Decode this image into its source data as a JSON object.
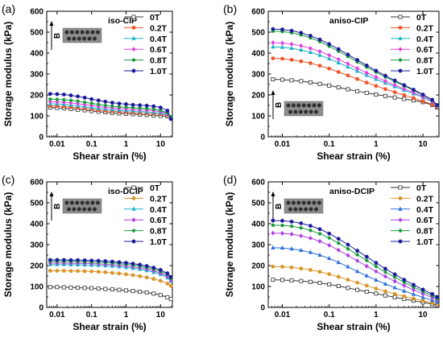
{
  "figure": {
    "panel_count": 4
  },
  "chart_data": [
    {
      "type": "line",
      "panel_label": "(a)",
      "title": "iso-CIP",
      "xlabel": "Shear strain (%)",
      "ylabel": "Storage modulus (kPa)",
      "xscale": "log",
      "xlim": [
        0.005,
        22
      ],
      "ylim": [
        0,
        600
      ],
      "x_tick_labels": [
        "0.01",
        "0.1",
        "1",
        "10"
      ],
      "y_tick_labels": [
        "0",
        "100",
        "200",
        "300",
        "400",
        "500",
        "600"
      ],
      "inset": {
        "field_label": "B",
        "position": "top-left"
      },
      "legend_position": "top-right",
      "x": [
        0.00631,
        0.01,
        0.0158,
        0.0251,
        0.0398,
        0.0631,
        0.1,
        0.158,
        0.251,
        0.398,
        0.631,
        1,
        1.58,
        2.51,
        3.98,
        6.31,
        10,
        15.8,
        20
      ],
      "series": [
        {
          "name": "0T",
          "color": "#333333",
          "marker": "square",
          "values": [
            140,
            138,
            136,
            133,
            130,
            127,
            123,
            120,
            117,
            114,
            112,
            110,
            108,
            106,
            104,
            102,
            100,
            98,
            90
          ]
        },
        {
          "name": "0.2T",
          "color": "#f0542a",
          "marker": "circle",
          "values": [
            148,
            147,
            145,
            142,
            139,
            136,
            132,
            128,
            125,
            122,
            120,
            118,
            116,
            114,
            112,
            110,
            108,
            103,
            92
          ]
        },
        {
          "name": "0.4T",
          "color": "#19b3c8",
          "marker": "triangle",
          "values": [
            158,
            157,
            155,
            152,
            148,
            144,
            140,
            136,
            133,
            130,
            127,
            125,
            123,
            121,
            119,
            117,
            114,
            108,
            93
          ]
        },
        {
          "name": "0.6T",
          "color": "#e040e0",
          "marker": "diamond",
          "values": [
            168,
            167,
            165,
            162,
            158,
            154,
            150,
            145,
            141,
            138,
            135,
            133,
            131,
            129,
            127,
            125,
            120,
            112,
            94
          ]
        },
        {
          "name": "0.8T",
          "color": "#1a9b3c",
          "marker": "pentagon",
          "values": [
            180,
            179,
            177,
            174,
            170,
            165,
            160,
            155,
            150,
            146,
            143,
            141,
            139,
            137,
            135,
            132,
            126,
            115,
            95
          ]
        },
        {
          "name": "1.0T",
          "color": "#1a1a9b",
          "marker": "circle",
          "values": [
            205,
            204,
            202,
            198,
            193,
            187,
            180,
            174,
            168,
            163,
            159,
            156,
            153,
            151,
            149,
            146,
            140,
            125,
            85
          ]
        }
      ]
    },
    {
      "type": "line",
      "panel_label": "(b)",
      "title": "aniso-CIP",
      "xlabel": "Shear strain (%)",
      "ylabel": "Storage modulus (kPa)",
      "xscale": "log",
      "xlim": [
        0.005,
        22
      ],
      "ylim": [
        0,
        600
      ],
      "x_tick_labels": [
        "0.01",
        "0.1",
        "1",
        "10"
      ],
      "y_tick_labels": [
        "0",
        "100",
        "200",
        "300",
        "400",
        "500",
        "600"
      ],
      "inset": {
        "field_label": "B",
        "position": "bottom-left"
      },
      "legend_position": "top-right",
      "x": [
        0.00631,
        0.01,
        0.0158,
        0.0251,
        0.0398,
        0.0631,
        0.1,
        0.158,
        0.251,
        0.398,
        0.631,
        1,
        1.58,
        2.51,
        3.98,
        6.31,
        10,
        15.8,
        20
      ],
      "series": [
        {
          "name": "0T",
          "color": "#333333",
          "marker": "square",
          "values": [
            275,
            273,
            270,
            266,
            260,
            253,
            245,
            236,
            227,
            218,
            210,
            202,
            195,
            188,
            181,
            174,
            166,
            152,
            140
          ]
        },
        {
          "name": "0.2T",
          "color": "#f0542a",
          "marker": "circle",
          "values": [
            375,
            373,
            368,
            361,
            352,
            340,
            326,
            310,
            293,
            276,
            259,
            243,
            228,
            213,
            199,
            185,
            170,
            155,
            142
          ]
        },
        {
          "name": "0.4T",
          "color": "#19b3c8",
          "marker": "triangle",
          "values": [
            430,
            428,
            423,
            415,
            404,
            390,
            373,
            354,
            334,
            314,
            294,
            275,
            257,
            240,
            223,
            206,
            188,
            168,
            145
          ]
        },
        {
          "name": "0.6T",
          "color": "#e040e0",
          "marker": "diamond",
          "values": [
            450,
            448,
            443,
            435,
            423,
            408,
            390,
            370,
            349,
            327,
            306,
            286,
            266,
            247,
            229,
            211,
            192,
            170,
            147
          ]
        },
        {
          "name": "0.8T",
          "color": "#1a9b3c",
          "marker": "pentagon",
          "values": [
            505,
            503,
            497,
            487,
            473,
            455,
            433,
            409,
            384,
            358,
            333,
            309,
            286,
            264,
            243,
            222,
            200,
            175,
            150
          ]
        },
        {
          "name": "1.0T",
          "color": "#1a1a9b",
          "marker": "circle",
          "values": [
            515,
            513,
            507,
            497,
            483,
            465,
            443,
            419,
            393,
            367,
            341,
            316,
            292,
            269,
            247,
            225,
            202,
            177,
            152
          ]
        }
      ]
    },
    {
      "type": "line",
      "panel_label": "(c)",
      "title": "iso-DCIP",
      "xlabel": "Shear strain (%)",
      "ylabel": "Storage modulus (kPa)",
      "xscale": "log",
      "xlim": [
        0.005,
        22
      ],
      "ylim": [
        0,
        600
      ],
      "x_tick_labels": [
        "0.01",
        "0.1",
        "1",
        "10"
      ],
      "y_tick_labels": [
        "0",
        "100",
        "200",
        "300",
        "400",
        "500",
        "600"
      ],
      "inset": {
        "field_label": "B",
        "position": "top-left"
      },
      "legend_position": "top-right",
      "x": [
        0.00631,
        0.01,
        0.0158,
        0.0251,
        0.0398,
        0.0631,
        0.1,
        0.158,
        0.251,
        0.398,
        0.631,
        1,
        1.58,
        2.51,
        3.98,
        6.31,
        10,
        15.8,
        20
      ],
      "series": [
        {
          "name": "0T",
          "color": "#333333",
          "marker": "square",
          "values": [
            97,
            97,
            96,
            95,
            94,
            93,
            92,
            90,
            88,
            86,
            84,
            81,
            78,
            75,
            71,
            66,
            59,
            48,
            40
          ]
        },
        {
          "name": "0.2T",
          "color": "#d9962a",
          "marker": "circle",
          "values": [
            175,
            175,
            175,
            174,
            174,
            173,
            172,
            170,
            168,
            165,
            162,
            158,
            154,
            149,
            143,
            136,
            127,
            114,
            103
          ]
        },
        {
          "name": "0.4T",
          "color": "#19b3c8",
          "marker": "triangle",
          "values": [
            205,
            205,
            205,
            204,
            204,
            203,
            202,
            201,
            199,
            197,
            194,
            191,
            187,
            182,
            176,
            168,
            158,
            142,
            125
          ]
        },
        {
          "name": "0.6T",
          "color": "#b040e0",
          "marker": "diamond",
          "values": [
            212,
            212,
            212,
            211,
            211,
            210,
            209,
            208,
            206,
            204,
            201,
            198,
            194,
            189,
            183,
            175,
            164,
            148,
            130
          ]
        },
        {
          "name": "0.8T",
          "color": "#1a9b3c",
          "marker": "pentagon",
          "values": [
            220,
            220,
            220,
            219,
            219,
            218,
            217,
            216,
            214,
            212,
            209,
            206,
            202,
            197,
            191,
            183,
            172,
            157,
            138
          ]
        },
        {
          "name": "1.0T",
          "color": "#1a1a9b",
          "marker": "circle",
          "values": [
            227,
            227,
            227,
            226,
            226,
            225,
            224,
            223,
            221,
            219,
            216,
            213,
            209,
            204,
            198,
            190,
            179,
            163,
            145
          ]
        }
      ]
    },
    {
      "type": "line",
      "panel_label": "(d)",
      "title": "aniso-DCIP",
      "xlabel": "Shear strain (%)",
      "ylabel": "Storage modulus (kPa)",
      "xscale": "log",
      "xlim": [
        0.005,
        22
      ],
      "ylim": [
        0,
        600
      ],
      "x_tick_labels": [
        "0.01",
        "0.1",
        "1",
        "10"
      ],
      "y_tick_labels": [
        "0",
        "100",
        "200",
        "300",
        "400",
        "500",
        "600"
      ],
      "inset": {
        "field_label": "B",
        "position": "top-left"
      },
      "legend_position": "top-right",
      "x": [
        0.00631,
        0.01,
        0.0158,
        0.0251,
        0.0398,
        0.0631,
        0.1,
        0.158,
        0.251,
        0.398,
        0.631,
        1,
        1.58,
        2.51,
        3.98,
        6.31,
        10,
        15.8,
        20
      ],
      "series": [
        {
          "name": "0T",
          "color": "#333333",
          "marker": "square",
          "values": [
            132,
            131,
            129,
            126,
            122,
            117,
            110,
            102,
            93,
            84,
            75,
            66,
            57,
            48,
            40,
            32,
            24,
            16,
            10
          ]
        },
        {
          "name": "0.2T",
          "color": "#d9962a",
          "marker": "circle",
          "values": [
            195,
            194,
            191,
            186,
            179,
            170,
            159,
            146,
            132,
            118,
            104,
            90,
            77,
            64,
            53,
            42,
            32,
            22,
            15
          ]
        },
        {
          "name": "0.4T",
          "color": "#2a6fd9",
          "marker": "triangle",
          "values": [
            285,
            284,
            280,
            273,
            263,
            250,
            234,
            215,
            194,
            172,
            151,
            131,
            112,
            94,
            78,
            63,
            48,
            34,
            25
          ]
        },
        {
          "name": "0.6T",
          "color": "#b040e0",
          "marker": "diamond",
          "values": [
            355,
            354,
            350,
            342,
            331,
            316,
            297,
            274,
            249,
            223,
            197,
            172,
            148,
            125,
            104,
            84,
            65,
            47,
            35
          ]
        },
        {
          "name": "0.8T",
          "color": "#1a9b3c",
          "marker": "pentagon",
          "values": [
            393,
            392,
            388,
            380,
            368,
            352,
            332,
            307,
            280,
            252,
            224,
            196,
            169,
            144,
            120,
            97,
            76,
            56,
            42
          ]
        },
        {
          "name": "1.0T",
          "color": "#1a1a9b",
          "marker": "circle",
          "values": [
            415,
            414,
            410,
            402,
            390,
            374,
            353,
            328,
            300,
            271,
            242,
            213,
            185,
            158,
            132,
            108,
            85,
            64,
            50
          ]
        }
      ]
    }
  ]
}
